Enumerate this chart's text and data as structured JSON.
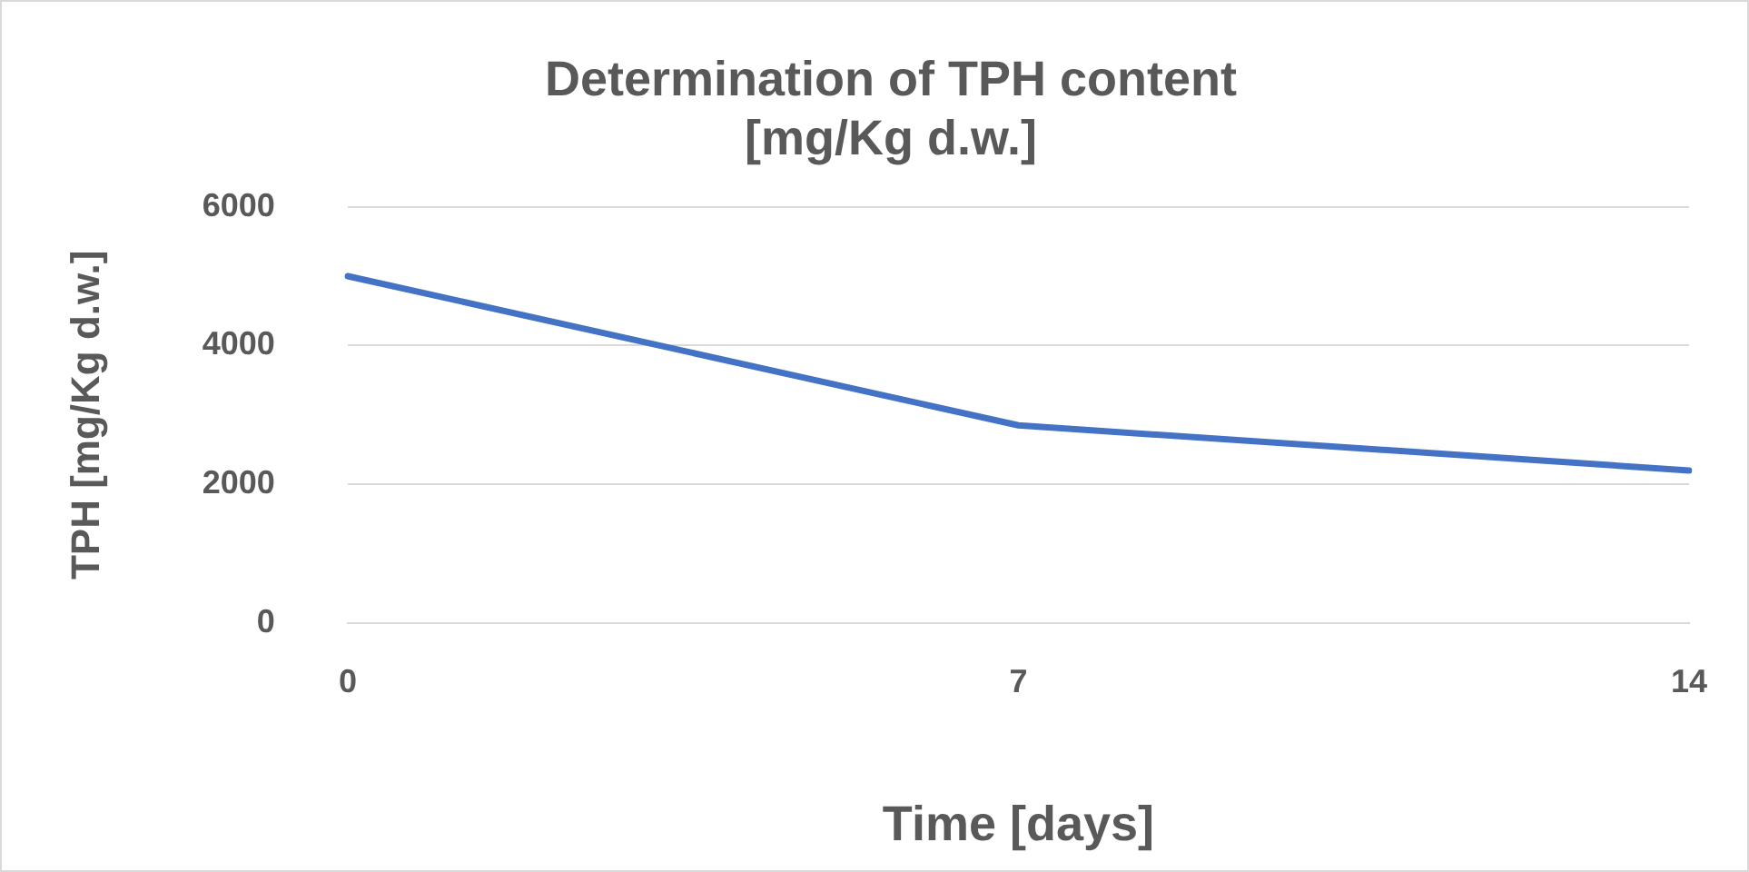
{
  "chart_data": {
    "type": "line",
    "title": "Determination of TPH content\n[mg/Kg d.w.]",
    "xlabel": "Time [days]",
    "ylabel": "TPH [mg/Kg d.w.]",
    "categories": [
      "0",
      "7",
      "14"
    ],
    "series": [
      {
        "color": "#4472c4",
        "values": [
          5000,
          2850,
          2200
        ]
      }
    ],
    "ylim": [
      0,
      6000
    ],
    "yticks": [
      0,
      2000,
      4000,
      6000
    ],
    "grid": "y",
    "legend": false,
    "marker": "none"
  }
}
